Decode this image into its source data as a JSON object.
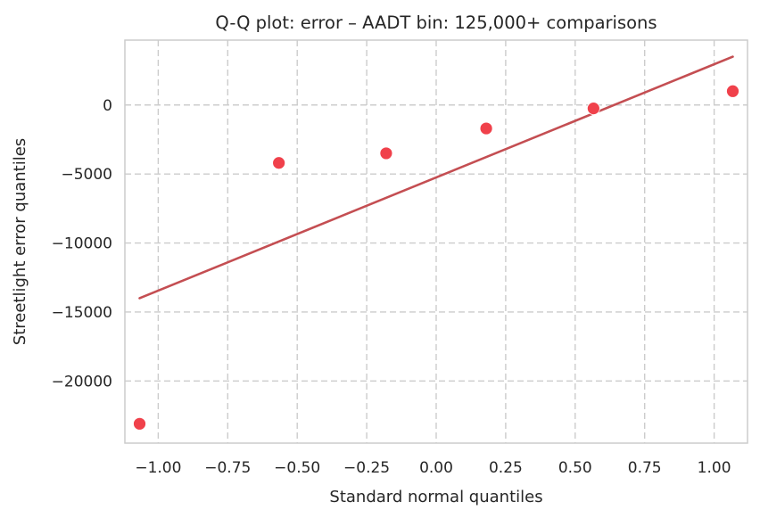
{
  "chart_data": {
    "type": "scatter",
    "title": "Q-Q plot: error – AADT bin: 125,000+ comparisons",
    "xlabel": "Standard normal quantiles",
    "ylabel": "Streetlight error quantiles",
    "xlim": [
      -1.12,
      1.12
    ],
    "ylim": [
      -24500,
      4700
    ],
    "xticks": [
      -1.0,
      -0.75,
      -0.5,
      -0.25,
      0.0,
      0.25,
      0.5,
      0.75,
      1.0
    ],
    "xtick_labels": [
      "−1.00",
      "−0.75",
      "−0.50",
      "−0.25",
      "0.00",
      "0.25",
      "0.50",
      "0.75",
      "1.00"
    ],
    "yticks": [
      0,
      -5000,
      -10000,
      -15000,
      -20000
    ],
    "ytick_labels": [
      "0",
      "−5000",
      "−10000",
      "−15000",
      "−20000"
    ],
    "grid": true,
    "points": {
      "x": [
        -1.067,
        -0.566,
        -0.18,
        0.18,
        0.566,
        1.067
      ],
      "y": [
        -23100,
        -4200,
        -3500,
        -1700,
        -250,
        1000
      ],
      "color": "#f0414b"
    },
    "reference_line": {
      "x": [
        -1.067,
        1.067
      ],
      "y": [
        -14000,
        3500
      ],
      "color": "#c44e52"
    }
  }
}
